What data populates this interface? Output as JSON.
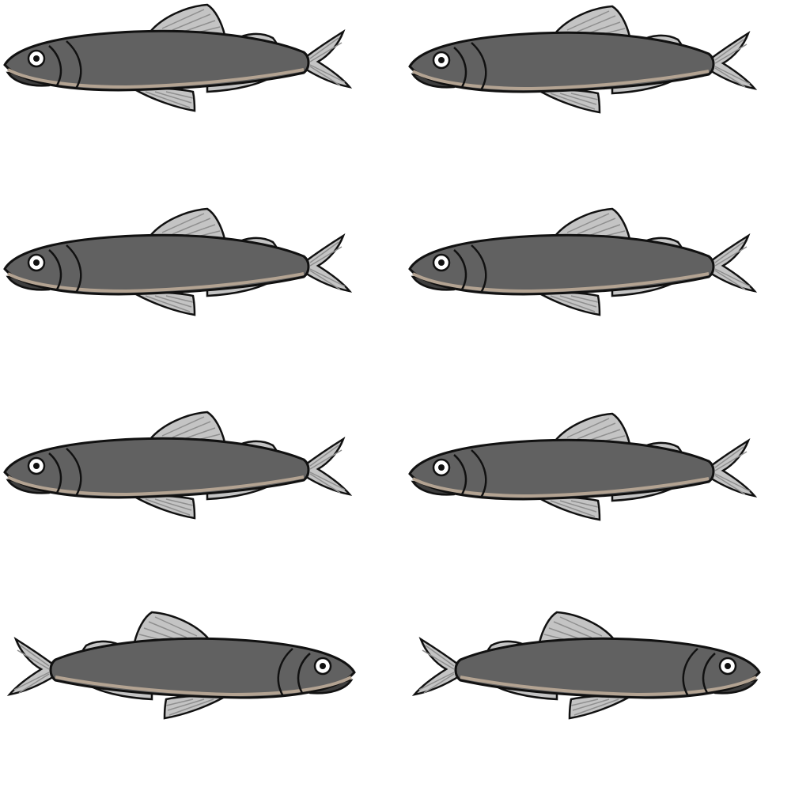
{
  "scene": {
    "background": "#ffffff",
    "fish": [
      {
        "icon": "fish-icon",
        "facing": "left"
      },
      {
        "icon": "fish-icon",
        "facing": "left"
      },
      {
        "icon": "fish-icon",
        "facing": "left"
      },
      {
        "icon": "fish-icon",
        "facing": "left"
      },
      {
        "icon": "fish-icon",
        "facing": "left"
      },
      {
        "icon": "fish-icon",
        "facing": "left"
      },
      {
        "icon": "fish-icon",
        "facing": "right"
      },
      {
        "icon": "fish-icon",
        "facing": "right"
      }
    ],
    "colors": {
      "body": "#616161",
      "belly_line": "#b3a392",
      "fin": "#c4c4c4",
      "fin_ray": "#8f8f8f",
      "outline": "#111111",
      "jaw": "#3d3d3d",
      "eye": "#ffffff"
    }
  }
}
